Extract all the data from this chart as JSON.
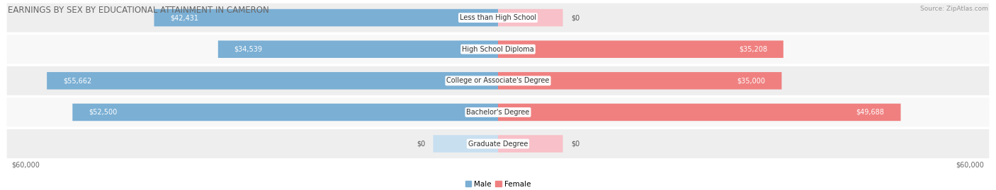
{
  "title": "EARNINGS BY SEX BY EDUCATIONAL ATTAINMENT IN CAMERON",
  "source": "Source: ZipAtlas.com",
  "categories": [
    "Less than High School",
    "High School Diploma",
    "College or Associate's Degree",
    "Bachelor's Degree",
    "Graduate Degree"
  ],
  "male_values": [
    42431,
    34539,
    55662,
    52500,
    0
  ],
  "female_values": [
    0,
    35208,
    35000,
    49688,
    0
  ],
  "male_labels": [
    "$42,431",
    "$34,539",
    "$55,662",
    "$52,500",
    "$0"
  ],
  "female_labels": [
    "$0",
    "$35,208",
    "$35,000",
    "$49,688",
    "$0"
  ],
  "max_value": 60000,
  "axis_label": "$60,000",
  "male_color": "#7bafd4",
  "female_color": "#f08080",
  "male_color_light": "#c8dff0",
  "female_color_light": "#f8c0c8",
  "row_bg_color_odd": "#eeeeee",
  "row_bg_color_even": "#f8f8f8",
  "title_fontsize": 8.5,
  "label_fontsize": 7,
  "category_fontsize": 7,
  "axis_fontsize": 7,
  "legend_fontsize": 7.5
}
